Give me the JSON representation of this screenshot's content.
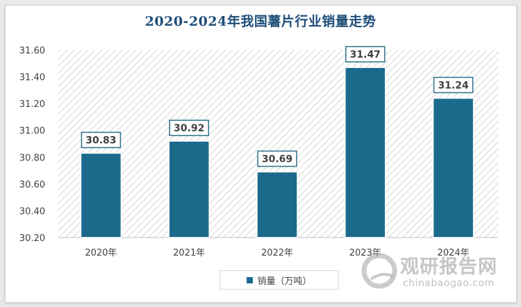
{
  "chart_data": {
    "type": "bar",
    "title": "2020-2024年我国薯片行业销量走势",
    "categories": [
      "2020年",
      "2021年",
      "2022年",
      "2023年",
      "2024年"
    ],
    "series": [
      {
        "name": "销量（万吨）",
        "values": [
          30.83,
          30.92,
          30.69,
          31.47,
          31.24
        ]
      }
    ],
    "data_labels": [
      "30.83",
      "30.92",
      "30.69",
      "31.47",
      "31.24"
    ],
    "y_ticks": [
      "30.20",
      "30.40",
      "30.60",
      "30.80",
      "31.00",
      "31.20",
      "31.40",
      "31.60"
    ],
    "ylim": [
      30.2,
      31.6
    ],
    "xlabel": "",
    "ylabel": "",
    "legend_position": "bottom",
    "plot_background": "diagonal-hatch",
    "bar_color": "#1b6a8c"
  },
  "watermark": {
    "name_cn": "观研报告网",
    "domain": "chinabaogao.com"
  }
}
